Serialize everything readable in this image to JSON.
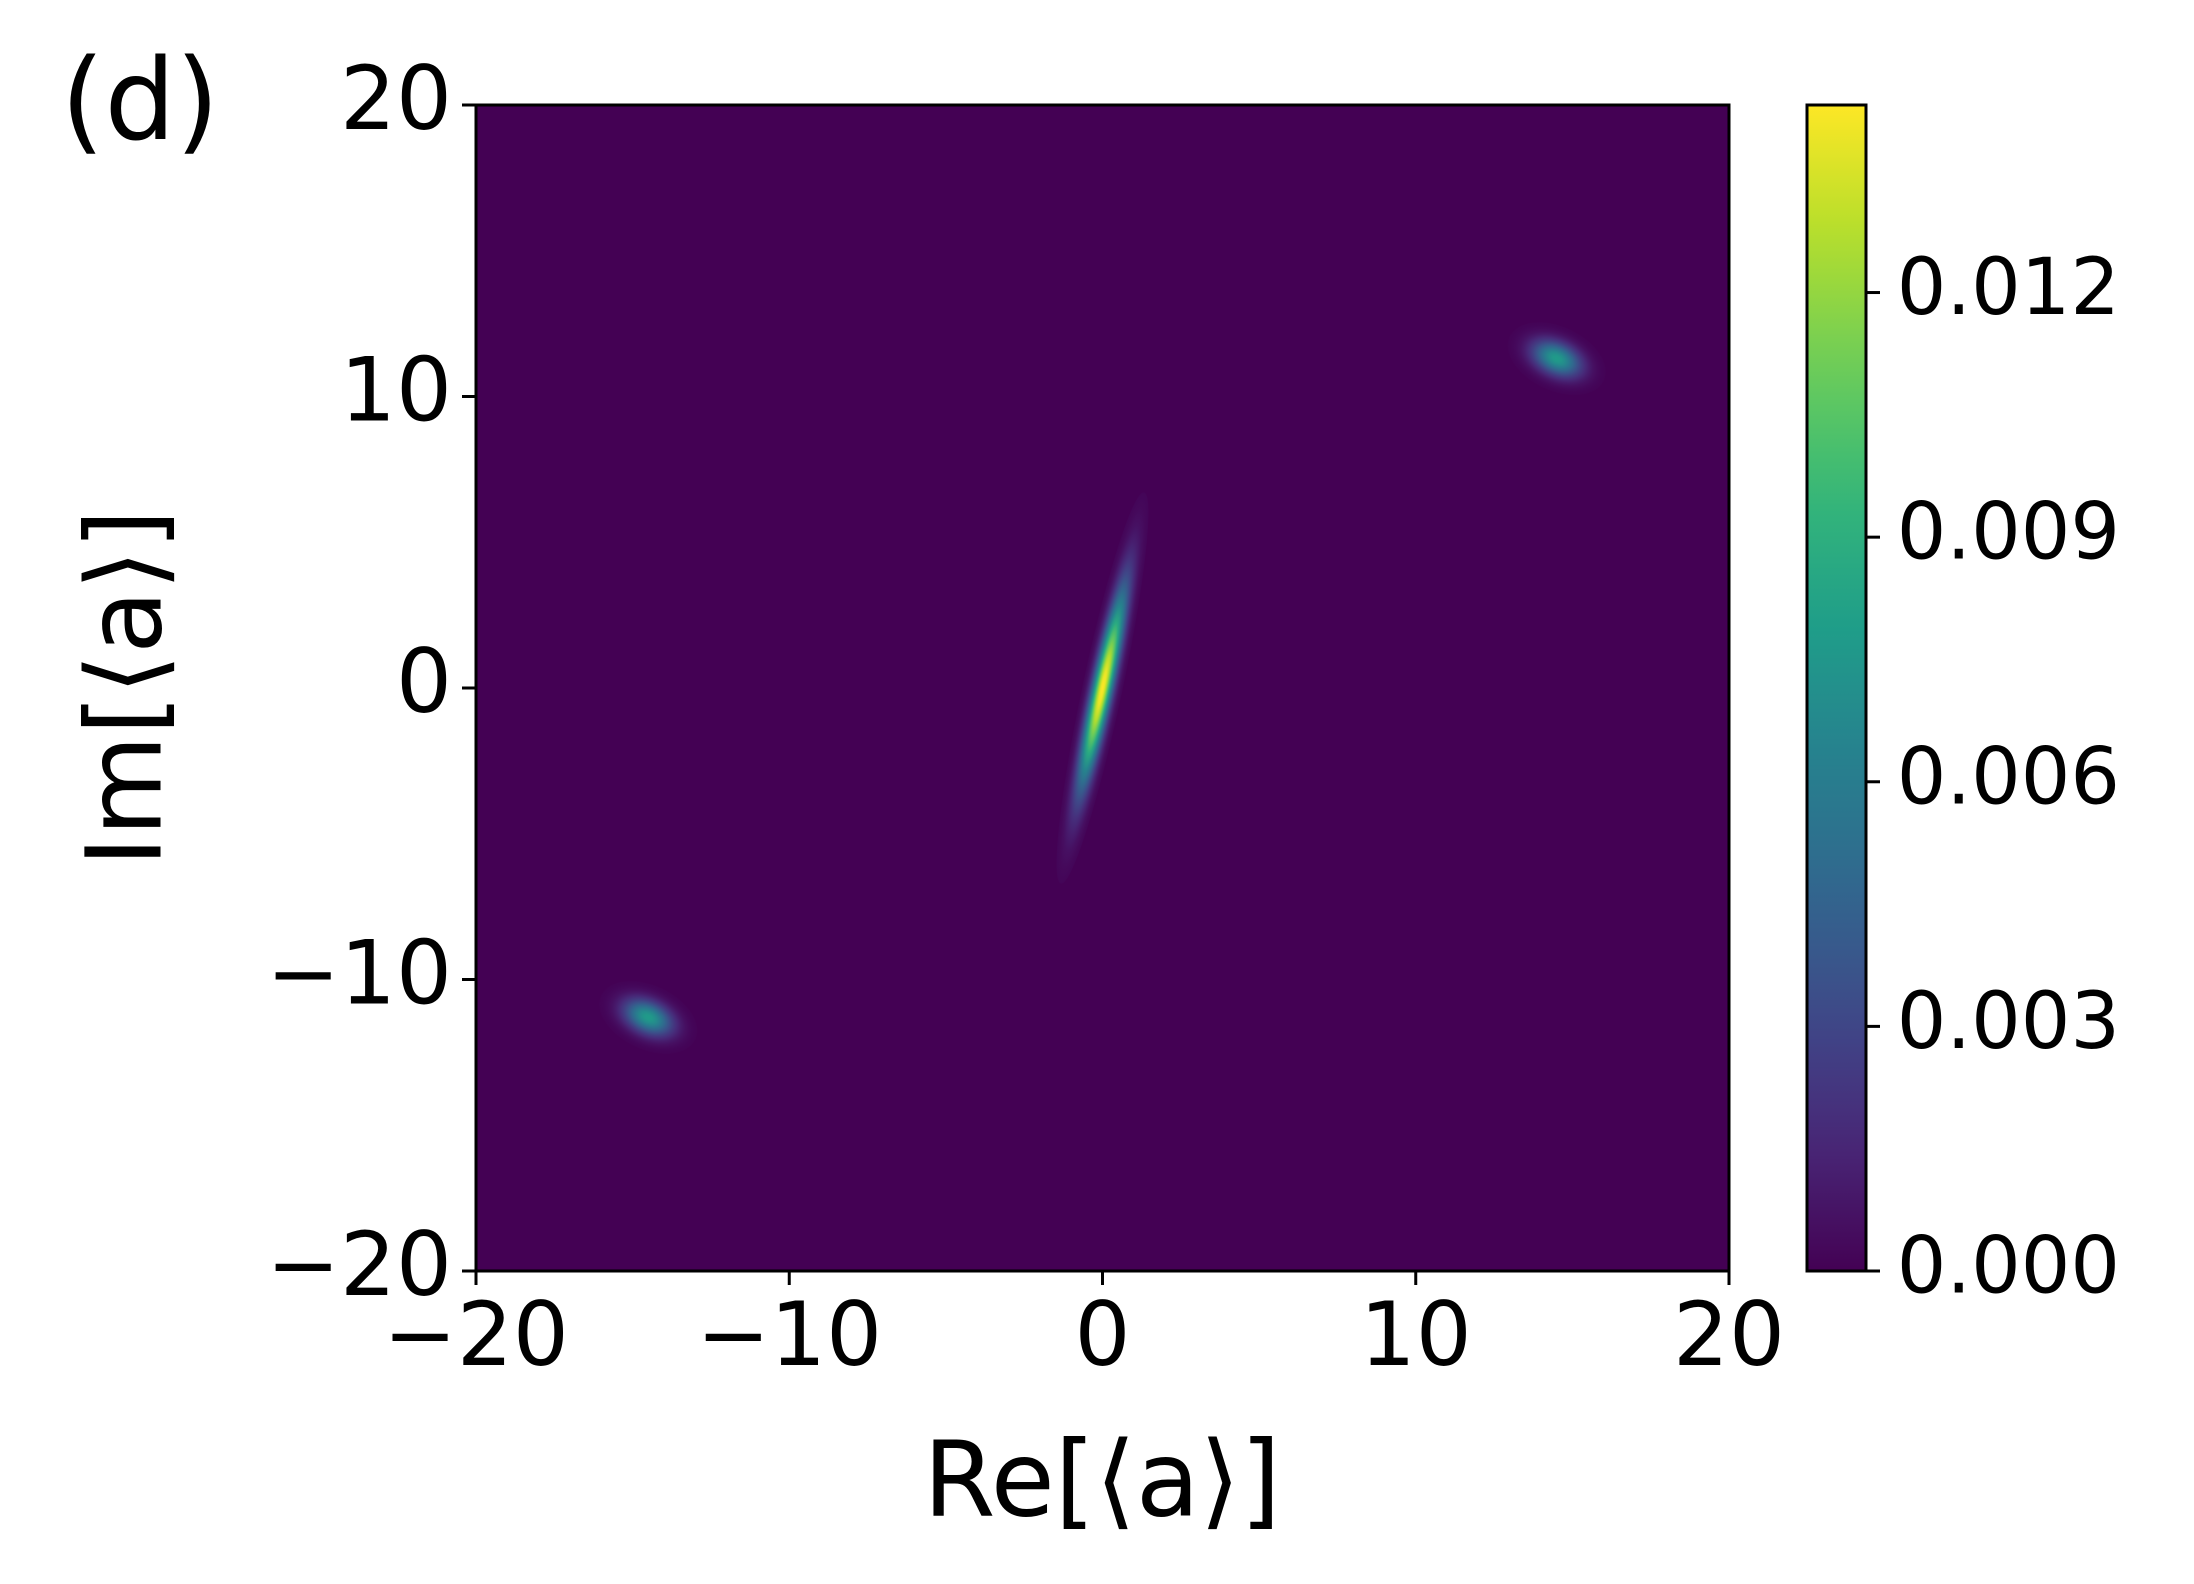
{
  "chart_data": {
    "type": "heatmap",
    "panel_label": "(d)",
    "x_label": "Re[⟨a⟩]",
    "y_label": "Im[⟨a⟩]",
    "xlim": [
      -20,
      20
    ],
    "ylim": [
      -20,
      20
    ],
    "xticks": [
      {
        "value": -20,
        "label": "−20"
      },
      {
        "value": -10,
        "label": "−10"
      },
      0,
      10,
      20
    ],
    "yticks": [
      {
        "value": -20,
        "label": "−20"
      },
      {
        "value": -10,
        "label": "−10"
      },
      0,
      10,
      20
    ],
    "colormap": "viridis",
    "clim": [
      0,
      0.0143
    ],
    "cticks": [
      {
        "value": 0,
        "label": "0.000"
      },
      {
        "value": 0.003,
        "label": "0.003"
      },
      {
        "value": 0.006,
        "label": "0.006"
      },
      {
        "value": 0.009,
        "label": "0.009"
      },
      {
        "value": 0.012,
        "label": "0.012"
      }
    ],
    "peaks": {
      "x": [
        0,
        14.5,
        -14.5
      ],
      "y": [
        0,
        11.3,
        -11.3
      ],
      "values": [
        0.0143,
        0.0078,
        0.0078
      ]
    }
  }
}
